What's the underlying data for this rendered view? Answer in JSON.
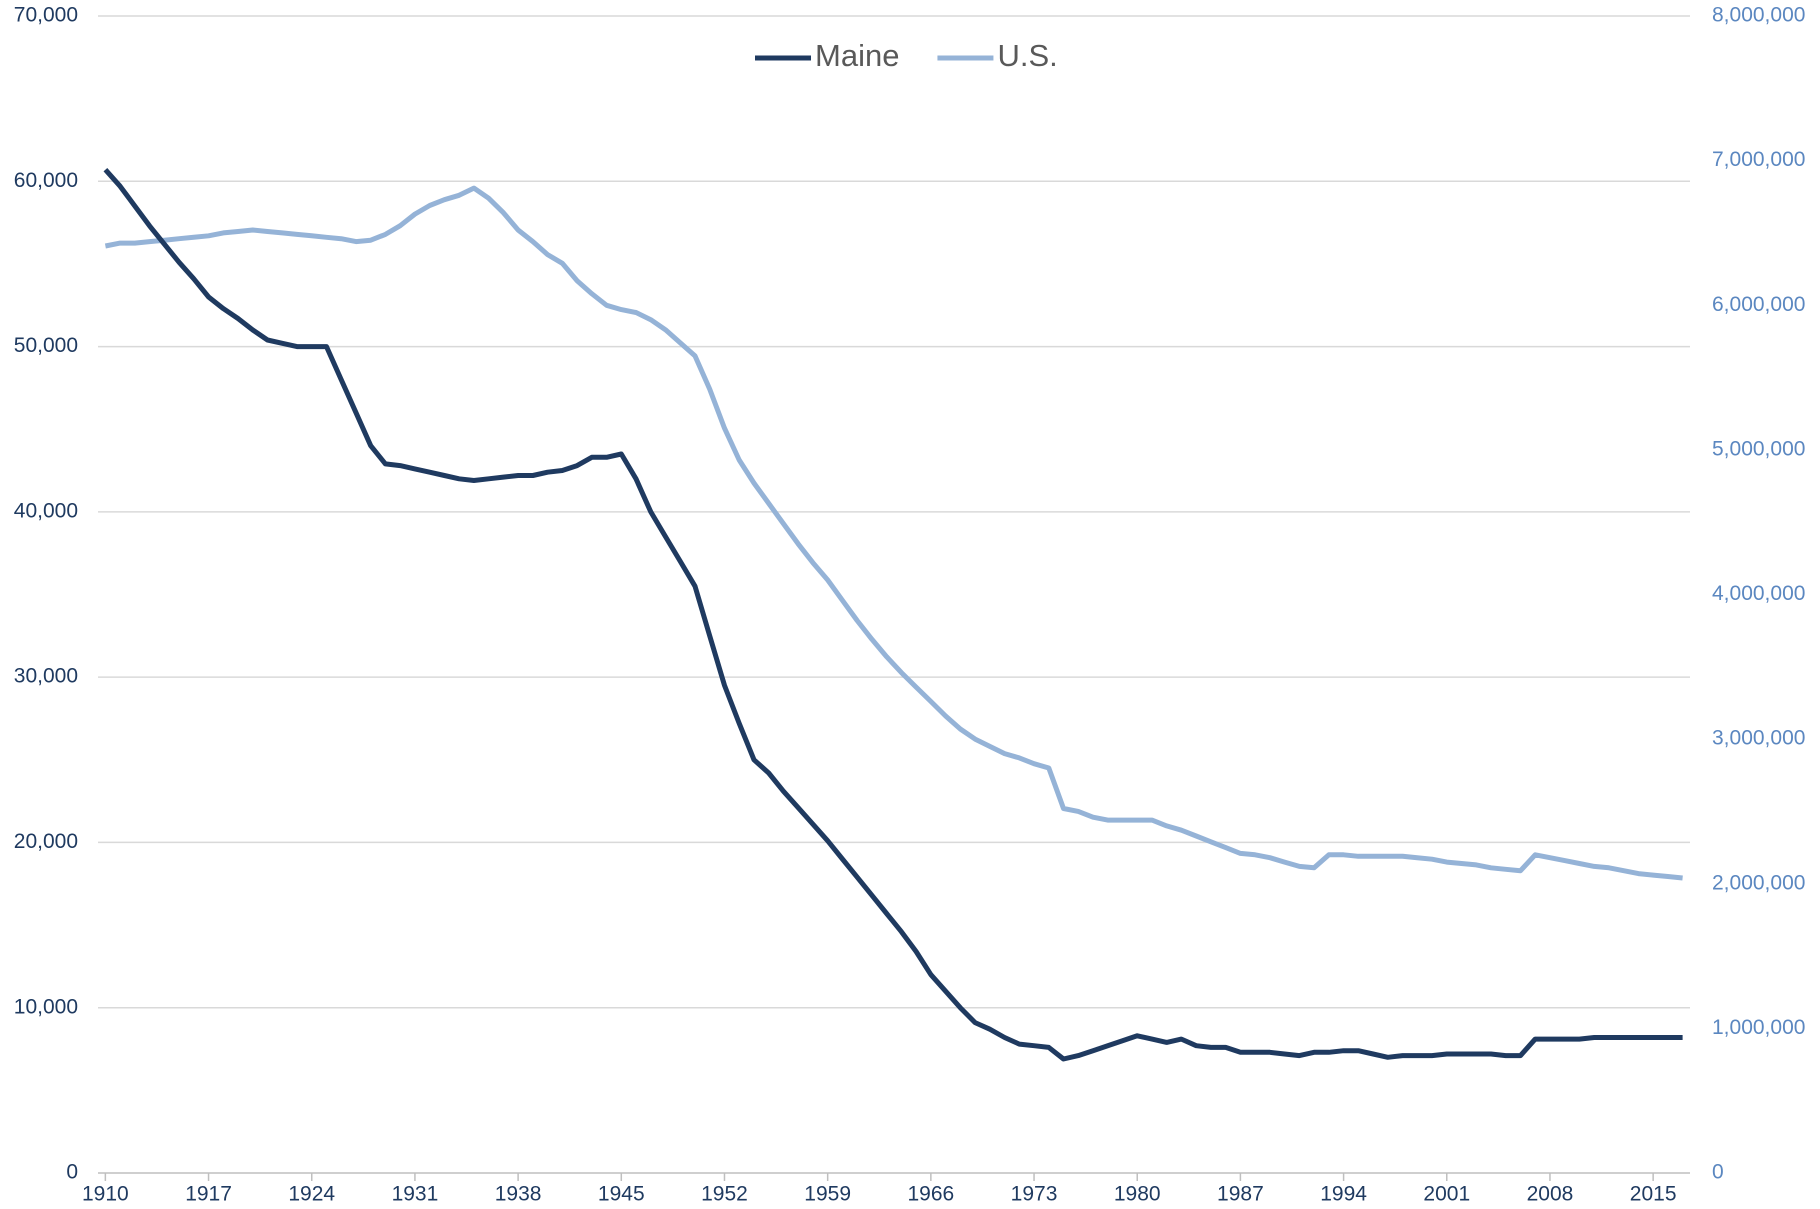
{
  "chart_data": {
    "type": "line",
    "x": [
      1910,
      1911,
      1912,
      1913,
      1914,
      1915,
      1916,
      1917,
      1918,
      1919,
      1920,
      1921,
      1922,
      1923,
      1924,
      1925,
      1926,
      1927,
      1928,
      1929,
      1930,
      1931,
      1932,
      1933,
      1934,
      1935,
      1936,
      1937,
      1938,
      1939,
      1940,
      1941,
      1942,
      1943,
      1944,
      1945,
      1946,
      1947,
      1948,
      1949,
      1950,
      1951,
      1952,
      1953,
      1954,
      1955,
      1956,
      1957,
      1958,
      1959,
      1960,
      1961,
      1962,
      1963,
      1964,
      1965,
      1966,
      1967,
      1968,
      1969,
      1970,
      1971,
      1972,
      1973,
      1974,
      1975,
      1976,
      1977,
      1978,
      1979,
      1980,
      1981,
      1982,
      1983,
      1984,
      1985,
      1986,
      1987,
      1988,
      1989,
      1990,
      1991,
      1992,
      1993,
      1994,
      1995,
      1996,
      1997,
      1998,
      1999,
      2000,
      2001,
      2002,
      2003,
      2004,
      2005,
      2006,
      2007,
      2008,
      2009,
      2010,
      2011,
      2012,
      2013,
      2014,
      2015,
      2016,
      2017
    ],
    "series": [
      {
        "name": "Maine",
        "color": "#1f3a60",
        "values": [
          60700,
          59700,
          58500,
          57300,
          56200,
          55100,
          54100,
          53000,
          52300,
          51700,
          51000,
          50400,
          50200,
          50000,
          50000,
          50000,
          48000,
          46000,
          44000,
          42900,
          42800,
          42600,
          42400,
          42200,
          42000,
          41900,
          42000,
          42100,
          42200,
          42200,
          42400,
          42500,
          42800,
          43300,
          43300,
          43500,
          42000,
          40000,
          38500,
          37000,
          35500,
          32500,
          29500,
          27200,
          25000,
          24200,
          23100,
          22100,
          21100,
          20100,
          19000,
          17900,
          16800,
          15700,
          14600,
          13400,
          12000,
          11000,
          10000,
          9100,
          8700,
          8200,
          7800,
          7700,
          7600,
          6900,
          7100,
          7400,
          7700,
          8000,
          8300,
          8100,
          7900,
          8100,
          7700,
          7600,
          7600,
          7300,
          7300,
          7300,
          7200,
          7100,
          7300,
          7300,
          7400,
          7400,
          7200,
          7000,
          7100,
          7100,
          7100,
          7200,
          7200,
          7200,
          7200,
          7100,
          7100,
          8100,
          8100,
          8100,
          8100,
          8200,
          8200,
          8200,
          8200,
          8200,
          8200,
          8200
        ]
      },
      {
        "name": "U.S.",
        "color": "#95b3d7",
        "axis": "y2",
        "values": [
          6410000,
          6430000,
          6430000,
          6440000,
          6450000,
          6460000,
          6470000,
          6480000,
          6500000,
          6510000,
          6520000,
          6510000,
          6500000,
          6490000,
          6480000,
          6470000,
          6460000,
          6440000,
          6450000,
          6490000,
          6550000,
          6630000,
          6690000,
          6730000,
          6760000,
          6810000,
          6740000,
          6640000,
          6520000,
          6440000,
          6350000,
          6290000,
          6170000,
          6080000,
          6000000,
          5970000,
          5950000,
          5900000,
          5830000,
          5740000,
          5650000,
          5420000,
          5150000,
          4930000,
          4770000,
          4630000,
          4490000,
          4350000,
          4220000,
          4100000,
          3960000,
          3820000,
          3690000,
          3570000,
          3460000,
          3360000,
          3260000,
          3160000,
          3070000,
          3000000,
          2950000,
          2900000,
          2870000,
          2830000,
          2800000,
          2520000,
          2500000,
          2460000,
          2440000,
          2440000,
          2440000,
          2440000,
          2400000,
          2370000,
          2330000,
          2290000,
          2250000,
          2210000,
          2200000,
          2180000,
          2150000,
          2120000,
          2110000,
          2200000,
          2200000,
          2190000,
          2190000,
          2190000,
          2190000,
          2180000,
          2170000,
          2150000,
          2140000,
          2130000,
          2110000,
          2100000,
          2090000,
          2200000,
          2180000,
          2160000,
          2140000,
          2120000,
          2110000,
          2090000,
          2070000,
          2060000,
          2050000,
          2040000
        ]
      }
    ],
    "xlim": [
      1909.5,
      2017.5
    ],
    "xticks": [
      1910,
      1917,
      1924,
      1931,
      1938,
      1945,
      1952,
      1959,
      1966,
      1973,
      1980,
      1987,
      1994,
      2001,
      2008,
      2015
    ],
    "ylim": [
      0,
      70000
    ],
    "yticks": [
      0,
      {
        "value": 10000,
        "label": "10,000"
      },
      {
        "value": 20000,
        "label": "20,000"
      },
      {
        "value": 30000,
        "label": "30,000"
      },
      {
        "value": 40000,
        "label": "40,000"
      },
      {
        "value": 50000,
        "label": "50,000"
      },
      {
        "value": 60000,
        "label": "60,000"
      },
      {
        "value": 70000,
        "label": "70,000"
      }
    ],
    "y2lim": [
      0,
      8000000
    ],
    "y2ticks": [
      0,
      {
        "value": 1000000,
        "label": "1,000,000"
      },
      {
        "value": 2000000,
        "label": "2,000,000"
      },
      {
        "value": 3000000,
        "label": "3,000,000"
      },
      {
        "value": 4000000,
        "label": "4,000,000"
      },
      {
        "value": 5000000,
        "label": "5,000,000"
      },
      {
        "value": 6000000,
        "label": "6,000,000"
      },
      {
        "value": 7000000,
        "label": "7,000,000"
      },
      {
        "value": 8000000,
        "label": "8,000,000"
      }
    ],
    "grid": true,
    "legend": "top"
  }
}
